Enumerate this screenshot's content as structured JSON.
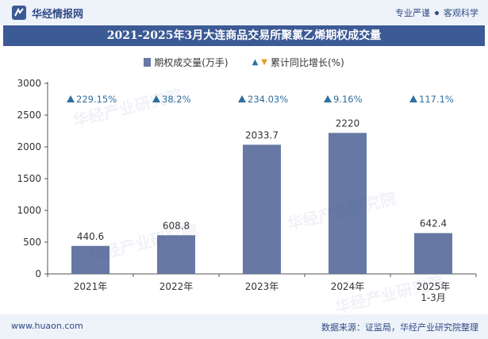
{
  "header": {
    "brand": "华经情报网",
    "slogan_left": "专业严谨",
    "slogan_right": "客观科学"
  },
  "footer": {
    "website": "www.huaon.com",
    "source": "数据来源：证监局，华经产业研究院整理"
  },
  "watermark": "华经产业研究院",
  "colors": {
    "bar": "#6678a3",
    "marker": "#2f6f9f",
    "title_bg": "#3c5a95"
  },
  "chart_data": {
    "type": "bar",
    "title": "2021-2025年3月大连商品交易所聚氯乙烯期权成交量",
    "categories": [
      "2021年",
      "2022年",
      "2023年",
      "2024年",
      "2025年\n1-3月"
    ],
    "series": [
      {
        "name": "期权成交量(万手)",
        "values": [
          440.6,
          608.8,
          2033.7,
          2220,
          642.4
        ]
      },
      {
        "name": "累计同比增长(%)",
        "values": [
          229.15,
          38.2,
          234.03,
          9.16,
          117.1
        ],
        "labels": [
          "229.15%",
          "38.2%",
          "234.03%",
          "9.16%",
          "117.1%"
        ]
      }
    ],
    "yticks": [
      0,
      500,
      1000,
      1500,
      2000,
      2500,
      3000
    ],
    "ylim": [
      0,
      3000
    ],
    "legend": "top-center",
    "grid": false
  }
}
